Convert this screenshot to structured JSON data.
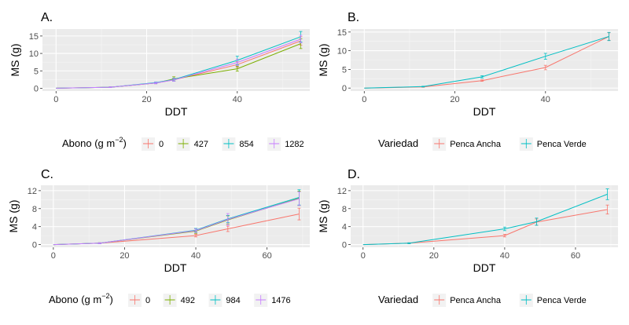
{
  "chart_data": [
    {
      "panel": "A.",
      "type": "line",
      "xlabel": "DDT",
      "ylabel": "MS (g)",
      "xlim": [
        -3,
        56
      ],
      "ylim": [
        -0.8,
        17
      ],
      "xticks": [
        0,
        20,
        40
      ],
      "yticks": [
        0,
        5,
        10,
        15
      ],
      "grid": true,
      "legend": {
        "title_main": "Abono (g",
        "title_unit": "m",
        "title_exp": "−2",
        "title_close": ")",
        "position": "bottom"
      },
      "x": [
        0,
        12,
        22,
        26,
        40,
        54
      ],
      "series": [
        {
          "name": "0",
          "color": "#F8766D",
          "values": [
            0,
            0.3,
            1.5,
            2.4,
            6.8,
            13.6
          ],
          "err": [
            0,
            0.1,
            0.2,
            0.4,
            0.8,
            1.2
          ]
        },
        {
          "name": "427",
          "color": "#7CAE00",
          "values": [
            0,
            0.3,
            1.5,
            2.7,
            5.6,
            12.8
          ],
          "err": [
            0,
            0.1,
            0.2,
            0.6,
            0.7,
            1.4
          ]
        },
        {
          "name": "854",
          "color": "#00BFC4",
          "values": [
            0,
            0.3,
            1.6,
            2.5,
            8.0,
            14.8
          ],
          "err": [
            0,
            0.1,
            0.2,
            0.4,
            1.2,
            1.5
          ]
        },
        {
          "name": "1282",
          "color": "#C77CFF",
          "values": [
            0,
            0.3,
            1.5,
            2.4,
            7.4,
            14.1
          ],
          "err": [
            0,
            0.1,
            0.2,
            0.4,
            0.9,
            1.1
          ]
        }
      ]
    },
    {
      "panel": "B.",
      "type": "line",
      "xlabel": "DDT",
      "ylabel": "MS (g)",
      "xlim": [
        -3,
        56
      ],
      "ylim": [
        -0.8,
        15.8
      ],
      "xticks": [
        0,
        20,
        40
      ],
      "yticks": [
        0,
        5,
        10,
        15
      ],
      "grid": true,
      "legend": {
        "title": "Variedad",
        "position": "bottom"
      },
      "x": [
        0,
        13,
        26,
        40,
        54
      ],
      "series": [
        {
          "name": "Penca Ancha",
          "color": "#F8766D",
          "values": [
            0,
            0.3,
            2.0,
            5.5,
            13.8
          ],
          "err": [
            0,
            0.1,
            0.2,
            0.6,
            1.0
          ]
        },
        {
          "name": "Penca Verde",
          "color": "#00BFC4",
          "values": [
            0,
            0.4,
            3.0,
            8.5,
            13.8
          ],
          "err": [
            0,
            0.1,
            0.3,
            0.8,
            1.1
          ]
        }
      ]
    },
    {
      "panel": "C.",
      "type": "line",
      "xlabel": "DDT",
      "ylabel": "MS (g)",
      "xlim": [
        -3.5,
        72
      ],
      "ylim": [
        -0.6,
        13.2
      ],
      "xticks": [
        0,
        20,
        40,
        60
      ],
      "yticks": [
        0,
        4,
        8,
        12
      ],
      "grid": true,
      "legend": {
        "title_main": "Abono (g",
        "title_unit": "m",
        "title_exp": "−2",
        "title_close": ")",
        "position": "bottom"
      },
      "x": [
        0,
        13,
        40,
        49,
        69
      ],
      "series": [
        {
          "name": "0",
          "color": "#F8766D",
          "values": [
            0,
            0.3,
            2.0,
            3.5,
            6.8
          ],
          "err": [
            0,
            0.1,
            0.3,
            0.6,
            1.3
          ]
        },
        {
          "name": "492",
          "color": "#7CAE00",
          "values": [
            0,
            0.3,
            3.0,
            5.5,
            10.3
          ],
          "err": [
            0,
            0.1,
            0.5,
            0.9,
            1.6
          ]
        },
        {
          "name": "984",
          "color": "#00BFC4",
          "values": [
            0,
            0.3,
            3.2,
            5.7,
            10.5
          ],
          "err": [
            0,
            0.1,
            0.4,
            0.8,
            1.7
          ]
        },
        {
          "name": "1476",
          "color": "#C77CFF",
          "values": [
            0,
            0.3,
            3.1,
            5.6,
            10.2
          ],
          "err": [
            0,
            0.1,
            0.4,
            1.3,
            1.5
          ]
        }
      ]
    },
    {
      "panel": "D.",
      "type": "line",
      "xlabel": "DDT",
      "ylabel": "MS (g)",
      "xlim": [
        -3.5,
        72
      ],
      "ylim": [
        -0.6,
        13.2
      ],
      "xticks": [
        0,
        20,
        40,
        60
      ],
      "yticks": [
        0,
        4,
        8,
        12
      ],
      "grid": true,
      "legend": {
        "title": "Variedad",
        "position": "bottom"
      },
      "x": [
        0,
        13,
        40,
        49,
        69
      ],
      "series": [
        {
          "name": "Penca Ancha",
          "color": "#F8766D",
          "values": [
            0,
            0.3,
            2.0,
            5.0,
            7.8
          ],
          "err": [
            0,
            0.1,
            0.3,
            0.7,
            1.0
          ]
        },
        {
          "name": "Penca Verde",
          "color": "#00BFC4",
          "values": [
            0,
            0.3,
            3.5,
            5.1,
            11.2
          ],
          "err": [
            0,
            0.1,
            0.4,
            0.8,
            1.2
          ]
        }
      ]
    }
  ]
}
